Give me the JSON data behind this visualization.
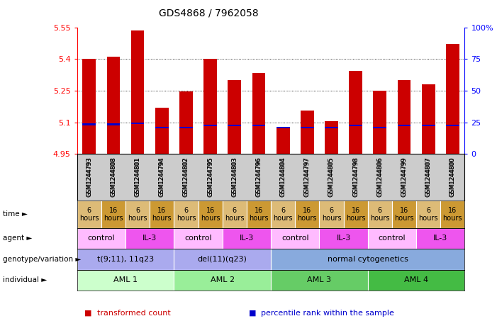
{
  "title": "GDS4868 / 7962058",
  "samples": [
    "GSM1244793",
    "GSM1244808",
    "GSM1244801",
    "GSM1244794",
    "GSM1244802",
    "GSM1244795",
    "GSM1244803",
    "GSM1244796",
    "GSM1244804",
    "GSM1244797",
    "GSM1244805",
    "GSM1244798",
    "GSM1244806",
    "GSM1244799",
    "GSM1244807",
    "GSM1244800"
  ],
  "bar_values": [
    5.4,
    5.41,
    5.535,
    5.17,
    5.245,
    5.4,
    5.3,
    5.335,
    5.075,
    5.155,
    5.105,
    5.345,
    5.25,
    5.3,
    5.28,
    5.47
  ],
  "percentile_values": [
    5.09,
    5.09,
    5.095,
    5.075,
    5.075,
    5.085,
    5.085,
    5.085,
    5.075,
    5.075,
    5.075,
    5.085,
    5.075,
    5.085,
    5.085,
    5.085
  ],
  "ylim_left": [
    4.95,
    5.55
  ],
  "ylim_right": [
    0,
    100
  ],
  "yticks_left": [
    4.95,
    5.1,
    5.25,
    5.4,
    5.55
  ],
  "yticks_right": [
    0,
    25,
    50,
    75,
    100
  ],
  "ytick_labels_left": [
    "4.95",
    "5.1",
    "5.25",
    "5.4",
    "5.55"
  ],
  "ytick_labels_right": [
    "0",
    "25",
    "50",
    "75",
    "100%"
  ],
  "bar_color": "#cc0000",
  "percentile_color": "#0000cc",
  "bar_bottom": 4.95,
  "xtick_bg_color": "#cccccc",
  "annotation_rows": [
    {
      "label": "individual",
      "groups": [
        {
          "text": "AML 1",
          "start": 0,
          "end": 4,
          "color": "#ccffcc",
          "textcolor": "#000000"
        },
        {
          "text": "AML 2",
          "start": 4,
          "end": 8,
          "color": "#99ee99",
          "textcolor": "#000000"
        },
        {
          "text": "AML 3",
          "start": 8,
          "end": 12,
          "color": "#66cc66",
          "textcolor": "#000000"
        },
        {
          "text": "AML 4",
          "start": 12,
          "end": 16,
          "color": "#44bb44",
          "textcolor": "#000000"
        }
      ]
    },
    {
      "label": "genotype/variation",
      "groups": [
        {
          "text": "t(9;11), 11q23",
          "start": 0,
          "end": 4,
          "color": "#aaaaee",
          "textcolor": "#000000"
        },
        {
          "text": "del(11)(q23)",
          "start": 4,
          "end": 8,
          "color": "#aaaaee",
          "textcolor": "#000000"
        },
        {
          "text": "normal cytogenetics",
          "start": 8,
          "end": 16,
          "color": "#88aadd",
          "textcolor": "#000000"
        }
      ]
    },
    {
      "label": "agent",
      "groups": [
        {
          "text": "control",
          "start": 0,
          "end": 2,
          "color": "#ffbbff",
          "textcolor": "#000000"
        },
        {
          "text": "IL-3",
          "start": 2,
          "end": 4,
          "color": "#ee55ee",
          "textcolor": "#000000"
        },
        {
          "text": "control",
          "start": 4,
          "end": 6,
          "color": "#ffbbff",
          "textcolor": "#000000"
        },
        {
          "text": "IL-3",
          "start": 6,
          "end": 8,
          "color": "#ee55ee",
          "textcolor": "#000000"
        },
        {
          "text": "control",
          "start": 8,
          "end": 10,
          "color": "#ffbbff",
          "textcolor": "#000000"
        },
        {
          "text": "IL-3",
          "start": 10,
          "end": 12,
          "color": "#ee55ee",
          "textcolor": "#000000"
        },
        {
          "text": "control",
          "start": 12,
          "end": 14,
          "color": "#ffbbff",
          "textcolor": "#000000"
        },
        {
          "text": "IL-3",
          "start": 14,
          "end": 16,
          "color": "#ee55ee",
          "textcolor": "#000000"
        }
      ]
    },
    {
      "label": "time",
      "groups": [
        {
          "text": "6\nhours",
          "start": 0,
          "end": 1,
          "color": "#ddbb77",
          "textcolor": "#000000"
        },
        {
          "text": "16\nhours",
          "start": 1,
          "end": 2,
          "color": "#cc9933",
          "textcolor": "#000000"
        },
        {
          "text": "6\nhours",
          "start": 2,
          "end": 3,
          "color": "#ddbb77",
          "textcolor": "#000000"
        },
        {
          "text": "16\nhours",
          "start": 3,
          "end": 4,
          "color": "#cc9933",
          "textcolor": "#000000"
        },
        {
          "text": "6\nhours",
          "start": 4,
          "end": 5,
          "color": "#ddbb77",
          "textcolor": "#000000"
        },
        {
          "text": "16\nhours",
          "start": 5,
          "end": 6,
          "color": "#cc9933",
          "textcolor": "#000000"
        },
        {
          "text": "6\nhours",
          "start": 6,
          "end": 7,
          "color": "#ddbb77",
          "textcolor": "#000000"
        },
        {
          "text": "16\nhours",
          "start": 7,
          "end": 8,
          "color": "#cc9933",
          "textcolor": "#000000"
        },
        {
          "text": "6\nhours",
          "start": 8,
          "end": 9,
          "color": "#ddbb77",
          "textcolor": "#000000"
        },
        {
          "text": "16\nhours",
          "start": 9,
          "end": 10,
          "color": "#cc9933",
          "textcolor": "#000000"
        },
        {
          "text": "6\nhours",
          "start": 10,
          "end": 11,
          "color": "#ddbb77",
          "textcolor": "#000000"
        },
        {
          "text": "16\nhours",
          "start": 11,
          "end": 12,
          "color": "#cc9933",
          "textcolor": "#000000"
        },
        {
          "text": "6\nhours",
          "start": 12,
          "end": 13,
          "color": "#ddbb77",
          "textcolor": "#000000"
        },
        {
          "text": "16\nhours",
          "start": 13,
          "end": 14,
          "color": "#cc9933",
          "textcolor": "#000000"
        },
        {
          "text": "6\nhours",
          "start": 14,
          "end": 15,
          "color": "#ddbb77",
          "textcolor": "#000000"
        },
        {
          "text": "16\nhours",
          "start": 15,
          "end": 16,
          "color": "#cc9933",
          "textcolor": "#000000"
        }
      ]
    }
  ],
  "legend": [
    {
      "label": "transformed count",
      "color": "#cc0000"
    },
    {
      "label": "percentile rank within the sample",
      "color": "#0000cc"
    }
  ]
}
